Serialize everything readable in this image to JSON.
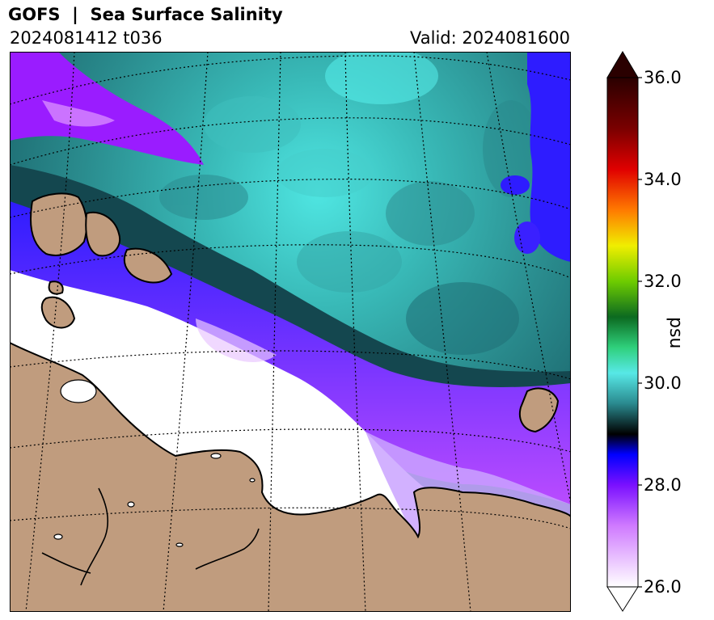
{
  "header": {
    "title": "GOFS  |  Sea Surface Salinity",
    "run": "2024081412 t036",
    "valid": "Valid: 2024081600"
  },
  "colorbar": {
    "unit": "psu",
    "min": 26.0,
    "max": 36.0,
    "ticks": [
      "36.0",
      "34.0",
      "32.0",
      "30.0",
      "28.0",
      "26.0"
    ]
  },
  "colors": {
    "land": "#c09c7e",
    "low_salinity": "#ffffff",
    "purple": "#9a1cff",
    "blue": "#2e1cff",
    "dark_teal": "#164f58",
    "teal": "#2a9a9b",
    "cyan": "#4fe6e2"
  }
}
